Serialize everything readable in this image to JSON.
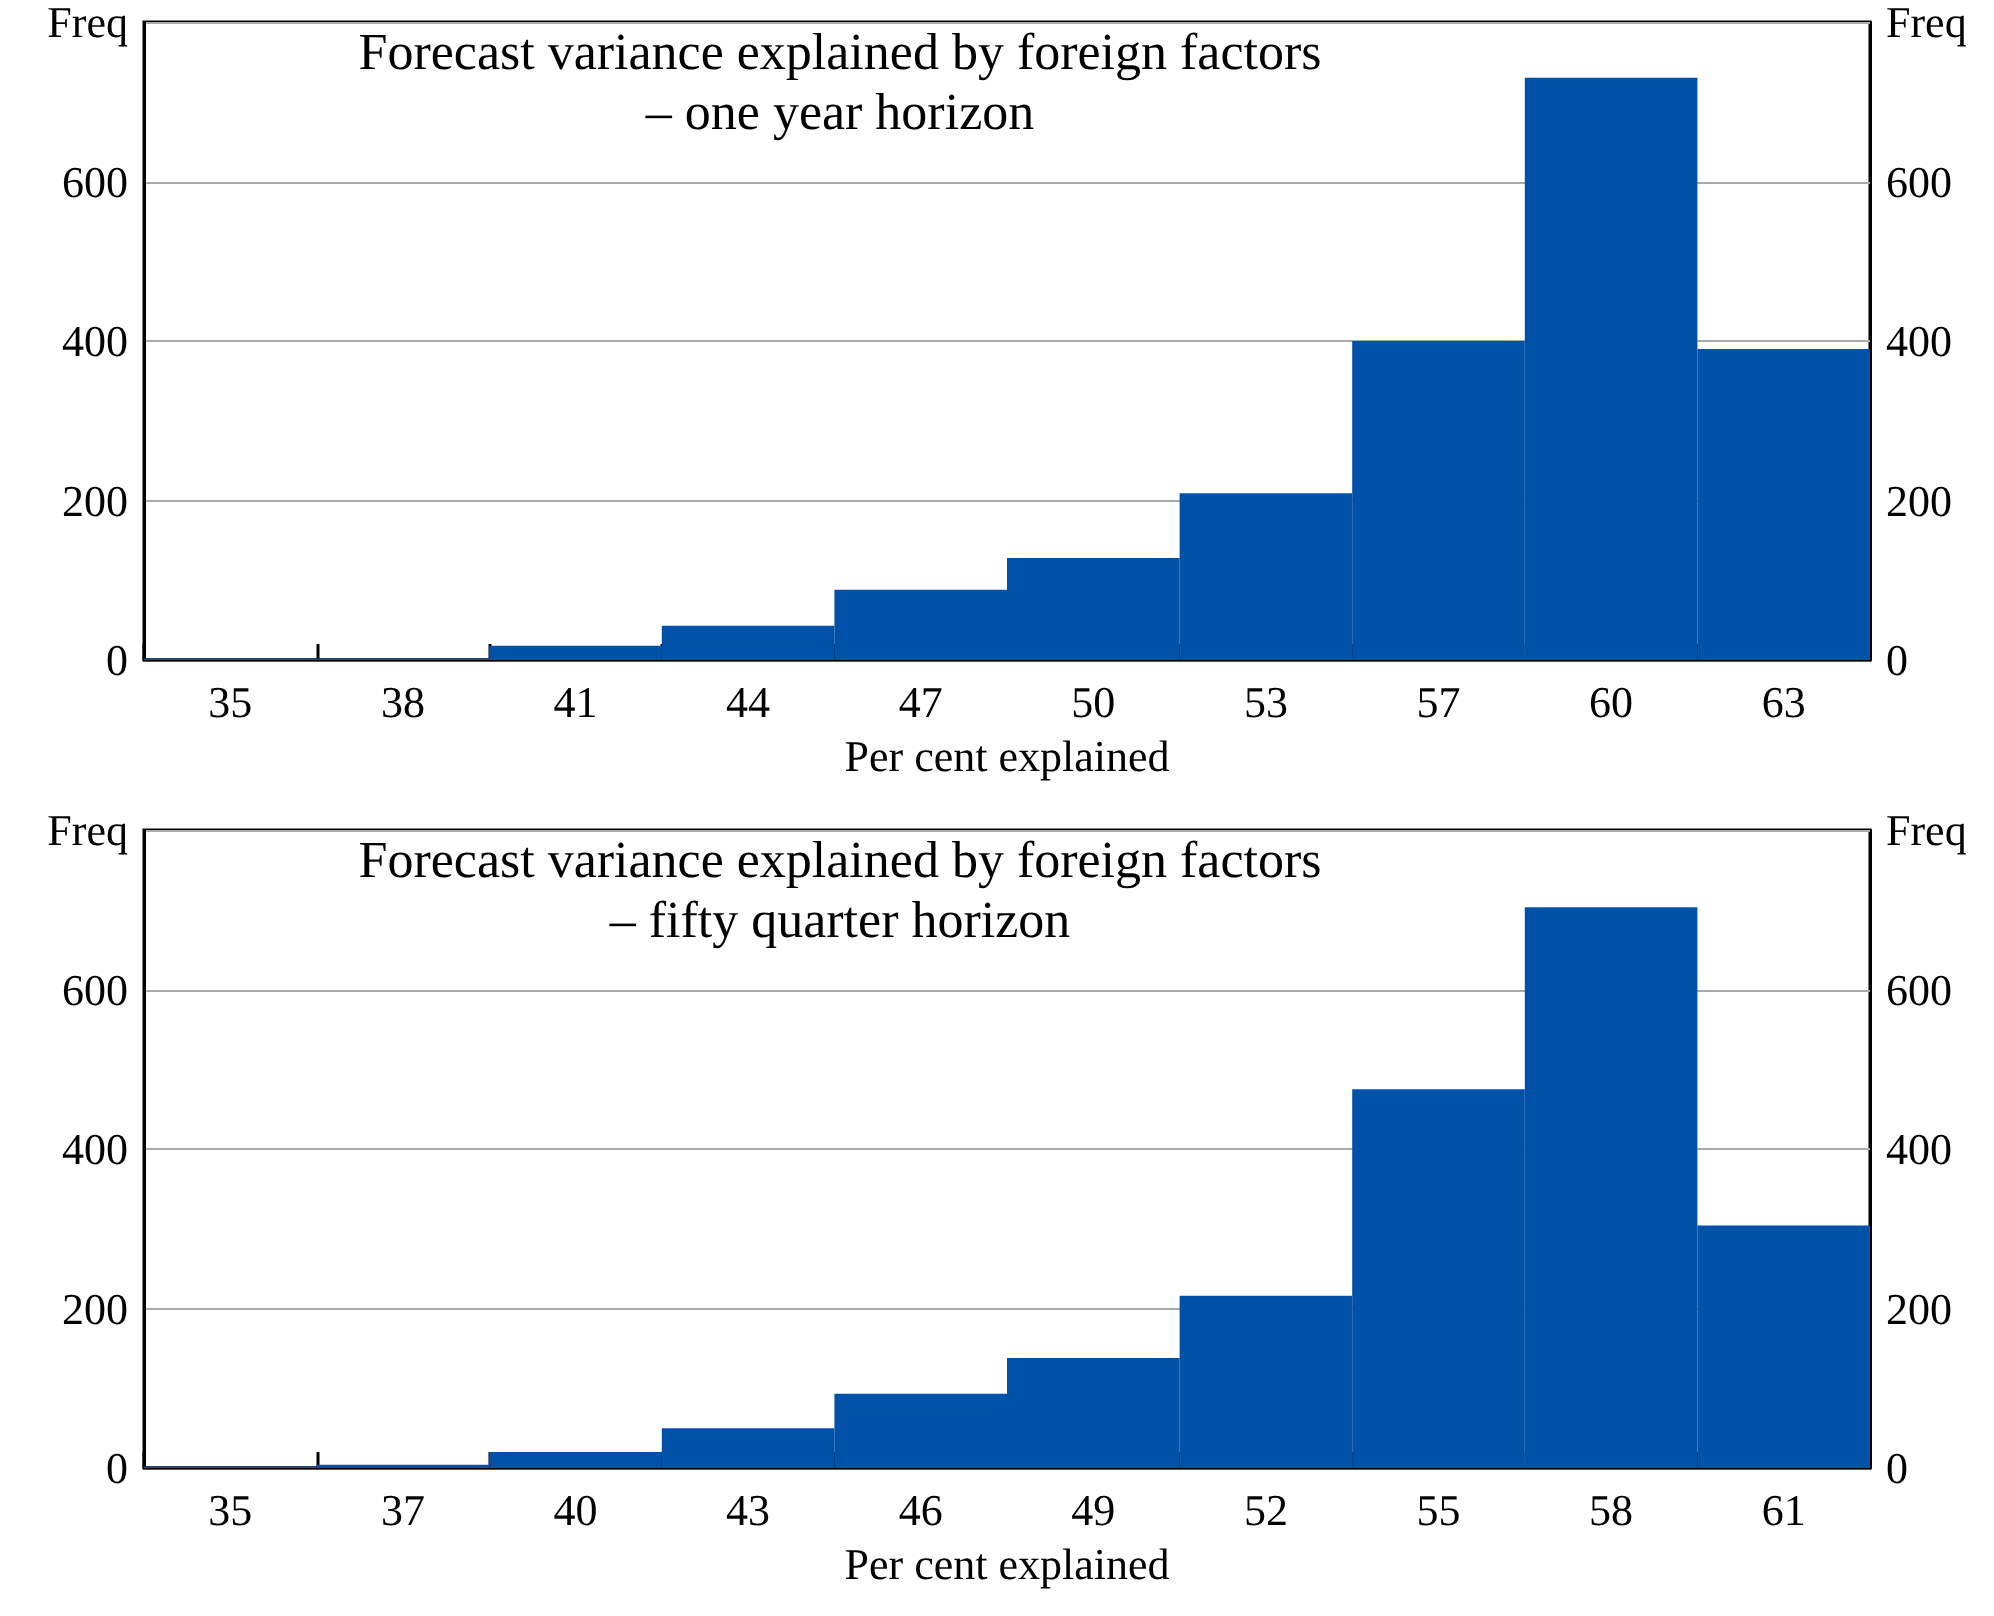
{
  "chart_data": [
    {
      "type": "bar",
      "title": "Forecast variance explained by foreign factors\n– one year horizon",
      "xlabel": "Per cent explained",
      "categories": [
        "35",
        "38",
        "41",
        "44",
        "47",
        "50",
        "53",
        "57",
        "60",
        "63"
      ],
      "series": [
        {
          "color": "#0051a8",
          "values": [
            2,
            2,
            18,
            43,
            88,
            128,
            209,
            400,
            730,
            390
          ]
        }
      ],
      "ylim": [
        0,
        800
      ],
      "yticks": [
        0,
        200,
        400,
        600,
        {
          "value": 800,
          "label": "Freq"
        }
      ],
      "y2lim": [
        0,
        800
      ],
      "y2ticks": [
        0,
        200,
        400,
        600,
        {
          "value": 800,
          "label": "Freq"
        }
      ],
      "grid": "y"
    },
    {
      "type": "bar",
      "title": "Forecast variance explained by foreign factors\n– fifty quarter horizon",
      "xlabel": "Per cent explained",
      "categories": [
        "35",
        "37",
        "40",
        "43",
        "46",
        "49",
        "52",
        "55",
        "58",
        "61"
      ],
      "series": [
        {
          "color": "#0051a8",
          "values": [
            2,
            4,
            20,
            50,
            93,
            138,
            216,
            475,
            703,
            304
          ]
        }
      ],
      "ylim": [
        0,
        800
      ],
      "yticks": [
        0,
        200,
        400,
        600,
        {
          "value": 800,
          "label": "Freq"
        }
      ],
      "y2lim": [
        0,
        800
      ],
      "y2ticks": [
        0,
        200,
        400,
        600,
        {
          "value": 800,
          "label": "Freq"
        }
      ],
      "grid": "y"
    }
  ]
}
